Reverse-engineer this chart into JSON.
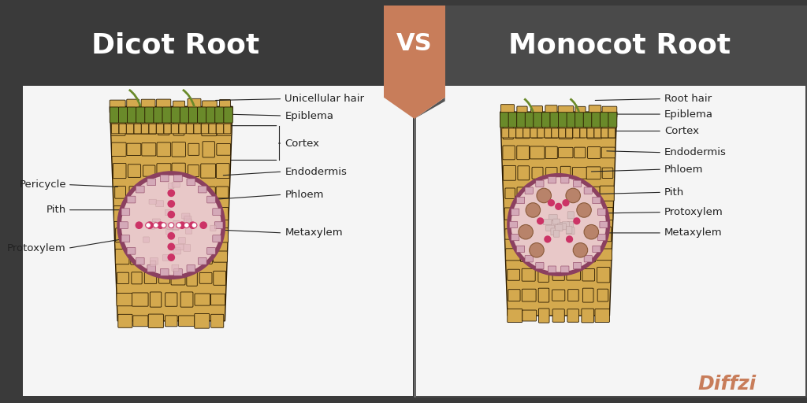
{
  "title_left": "Dicot Root",
  "title_right": "Monocot Root",
  "vs_text": "VS",
  "bg_left": "#3a3a3a",
  "bg_right": "#4a4a4a",
  "bg_banner": "#c87d5a",
  "bg_diagram": "#f5f5f5",
  "tan_cell": "#d4a94e",
  "tan_cell_border": "#2a1a00",
  "green_cell": "#6a8a2a",
  "pink_stele": "#e8c8c8",
  "stele_border": "#8B4060",
  "purple_dot": "#cc3366",
  "white_dot": "#ffffff",
  "line_color": "#222222",
  "label_color": "#222222",
  "title_color": "#ffffff",
  "diffzi_color": "#c87d5a",
  "dicot_labels_right": [
    "Unicellular hair",
    "Epiblema",
    "Cortex",
    "Endodermis",
    "Phloem",
    "Metaxylem"
  ],
  "dicot_labels_left": [
    "Pericycle",
    "Pith",
    "Protoxylem"
  ],
  "monocot_labels_right": [
    "Root hair",
    "Epiblema",
    "Cortex",
    "Endodermis",
    "Phloem",
    "Pith",
    "Protoxylem",
    "Metaxylem"
  ]
}
